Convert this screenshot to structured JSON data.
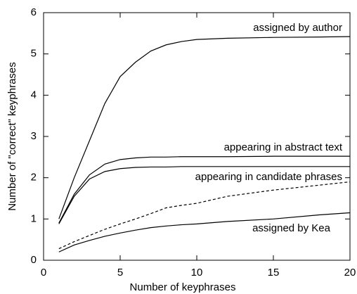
{
  "chart_data": {
    "type": "line",
    "x_label": "Number of keyphrases",
    "y_label": "Number of \"correct\" keyphrases",
    "x": [
      1,
      2,
      3,
      4,
      5,
      6,
      7,
      8,
      9,
      10,
      12,
      15,
      18,
      20
    ],
    "series": [
      {
        "name": "assigned by author",
        "color": "#000000",
        "dash": false,
        "values": [
          1.0,
          2.0,
          2.9,
          3.8,
          4.45,
          4.8,
          5.07,
          5.22,
          5.3,
          5.35,
          5.38,
          5.4,
          5.41,
          5.42
        ]
      },
      {
        "name": "appearing in abstract text",
        "color": "#000000",
        "dash": false,
        "values": [
          0.9,
          1.6,
          2.07,
          2.33,
          2.44,
          2.48,
          2.5,
          2.5,
          2.51,
          2.51,
          2.51,
          2.52,
          2.52,
          2.52
        ]
      },
      {
        "name": "appearing in candidate phrases",
        "color": "#000000",
        "dash": false,
        "values": [
          0.88,
          1.55,
          1.97,
          2.15,
          2.22,
          2.25,
          2.26,
          2.26,
          2.27,
          2.27,
          2.27,
          2.27,
          2.27,
          2.27
        ]
      },
      {
        "color": "#000000",
        "dash": true,
        "values": [
          0.28,
          0.45,
          0.6,
          0.75,
          0.88,
          1.0,
          1.13,
          1.27,
          1.33,
          1.38,
          1.55,
          1.7,
          1.82,
          1.9
        ]
      },
      {
        "name": "assigned by Kea",
        "color": "#000000",
        "dash": false,
        "values": [
          0.2,
          0.37,
          0.48,
          0.58,
          0.66,
          0.73,
          0.79,
          0.83,
          0.86,
          0.88,
          0.94,
          1.0,
          1.1,
          1.15
        ]
      }
    ],
    "xlim": [
      0,
      20
    ],
    "xticks": [
      0,
      5,
      10,
      15,
      20
    ],
    "ylim": [
      0,
      6
    ],
    "yticks": [
      0,
      1,
      2,
      3,
      4,
      5,
      6
    ]
  }
}
